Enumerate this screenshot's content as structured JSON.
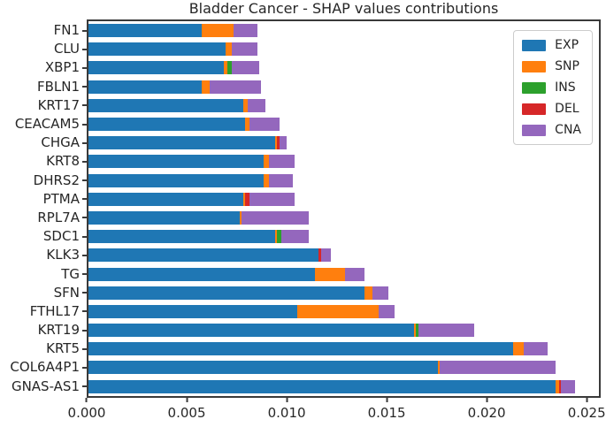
{
  "title": "Bladder Cancer - SHAP values contributions",
  "background_color": "#ffffff",
  "axis_color": "#3a3a3a",
  "text_color": "#262626",
  "chart_data": {
    "type": "bar",
    "orientation": "horizontal",
    "stacked": true,
    "title": "Bladder Cancer - SHAP values contributions",
    "xlabel": "",
    "ylabel": "",
    "xlim": [
      0,
      0.0257
    ],
    "grid": false,
    "categories": [
      "FN1",
      "CLU",
      "XBP1",
      "FBLN1",
      "KRT17",
      "CEACAM5",
      "CHGA",
      "KRT8",
      "DHRS2",
      "PTMA",
      "RPL7A",
      "SDC1",
      "KLK3",
      "TG",
      "SFN",
      "FTHL17",
      "KRT19",
      "KRT5",
      "COL6A4P1",
      "GNAS-AS1"
    ],
    "series": [
      {
        "name": "EXP",
        "color": "#1f77b4",
        "values": [
          0.0057,
          0.0069,
          0.0068,
          0.0057,
          0.0078,
          0.0079,
          0.0094,
          0.0088,
          0.0088,
          0.0078,
          0.0076,
          0.0094,
          0.0116,
          0.0114,
          0.0139,
          0.0105,
          0.0164,
          0.0214,
          0.0176,
          0.0235
        ]
      },
      {
        "name": "SNP",
        "color": "#ff7f0e",
        "values": [
          0.0016,
          0.0003,
          0.0002,
          0.0004,
          0.0002,
          0.0002,
          0.0001,
          0.0003,
          0.0003,
          0.0001,
          0.0001,
          0.0001,
          0.0,
          0.0015,
          0.0004,
          0.0041,
          0.0001,
          0.0005,
          0.0001,
          0.0002
        ]
      },
      {
        "name": "INS",
        "color": "#2ca02c",
        "values": [
          0.0,
          0.0,
          0.0002,
          0.0,
          0.0,
          0.0,
          0.0,
          0.0,
          0.0,
          0.0,
          0.0,
          0.0002,
          0.0,
          0.0,
          0.0,
          0.0,
          0.0001,
          0.0,
          0.0,
          0.0
        ]
      },
      {
        "name": "DEL",
        "color": "#d62728",
        "values": [
          0.0,
          0.0,
          0.0,
          0.0,
          0.0,
          0.0,
          0.0001,
          0.0,
          0.0,
          0.0002,
          0.0,
          0.0,
          0.0001,
          0.0,
          0.0,
          0.0,
          0.0,
          0.0,
          0.0,
          0.0001
        ]
      },
      {
        "name": "CNA",
        "color": "#9467bd",
        "values": [
          0.0012,
          0.0013,
          0.0014,
          0.0026,
          0.0009,
          0.0015,
          0.0004,
          0.0013,
          0.0012,
          0.0023,
          0.0034,
          0.0014,
          0.0005,
          0.001,
          0.0008,
          0.0008,
          0.0028,
          0.0012,
          0.0058,
          0.0007
        ]
      }
    ],
    "x_ticks": [
      {
        "value": 0.0,
        "label": "0.000"
      },
      {
        "value": 0.005,
        "label": "0.005"
      },
      {
        "value": 0.01,
        "label": "0.010"
      },
      {
        "value": 0.015,
        "label": "0.015"
      },
      {
        "value": 0.02,
        "label": "0.020"
      },
      {
        "value": 0.025,
        "label": "0.025"
      }
    ],
    "legend": {
      "position": "upper right",
      "entries": [
        "EXP",
        "SNP",
        "INS",
        "DEL",
        "CNA"
      ]
    }
  }
}
